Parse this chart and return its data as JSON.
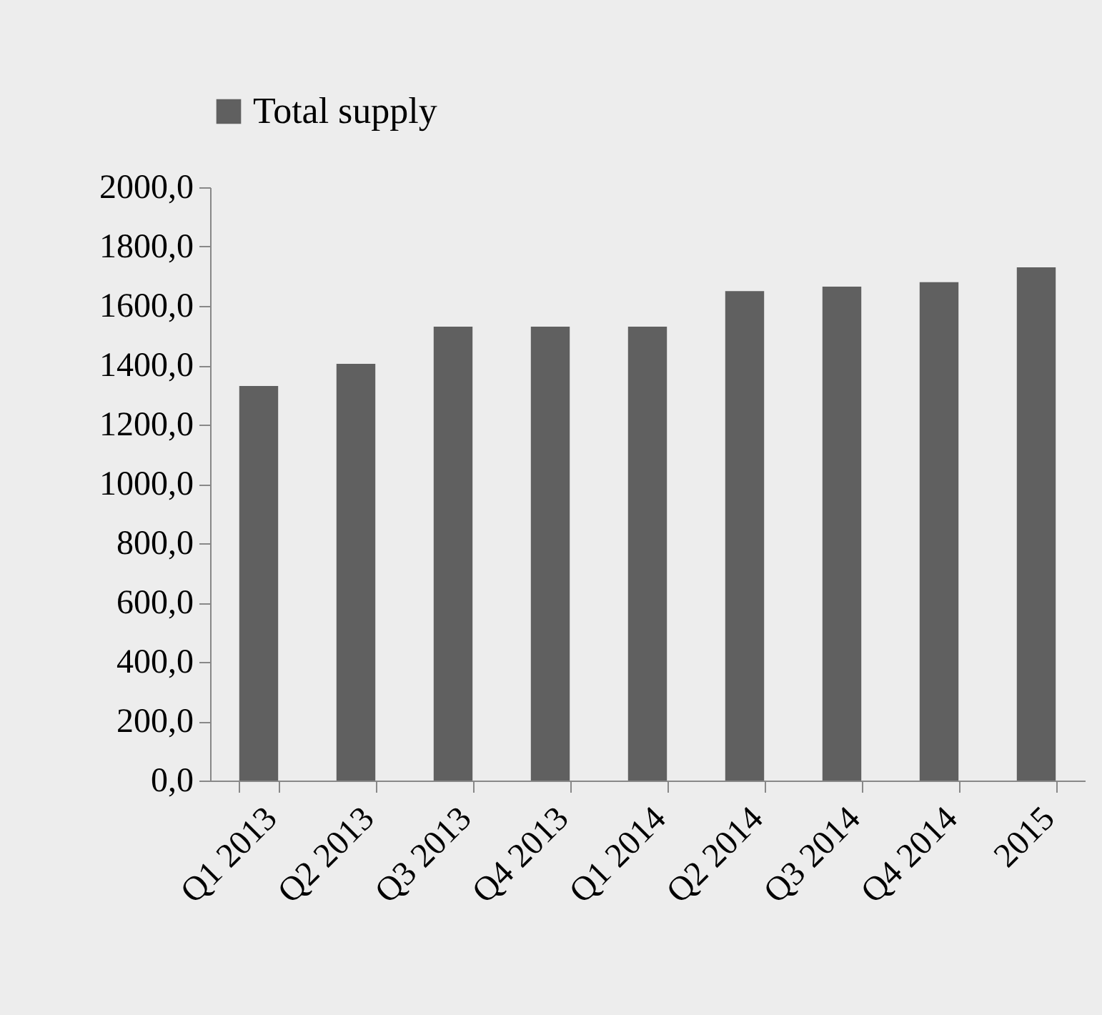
{
  "chart_data": {
    "type": "bar",
    "categories": [
      "Q1 2013",
      "Q2 2013",
      "Q3 2013",
      "Q4 2013",
      "Q1 2014",
      "Q2 2014",
      "Q3 2014",
      "Q4 2014",
      "2015"
    ],
    "series": [
      {
        "name": "Total supply",
        "color": "#606060",
        "values": [
          1330,
          1405,
          1530,
          1530,
          1530,
          1650,
          1665,
          1680,
          1730
        ]
      }
    ],
    "ylim": [
      0,
      2000
    ],
    "yticks": [
      {
        "value": 0,
        "label": "0,0"
      },
      {
        "value": 200,
        "label": "200,0"
      },
      {
        "value": 400,
        "label": "400,0"
      },
      {
        "value": 600,
        "label": "600,0"
      },
      {
        "value": 800,
        "label": "800,0"
      },
      {
        "value": 1000,
        "label": "1000,0"
      },
      {
        "value": 1200,
        "label": "1200,0"
      },
      {
        "value": 1400,
        "label": "1400,0"
      },
      {
        "value": 1600,
        "label": "1600,0"
      },
      {
        "value": 1800,
        "label": "1800,0"
      },
      {
        "value": 2000,
        "label": "2000,0"
      }
    ],
    "grid": false,
    "legend": "top"
  }
}
